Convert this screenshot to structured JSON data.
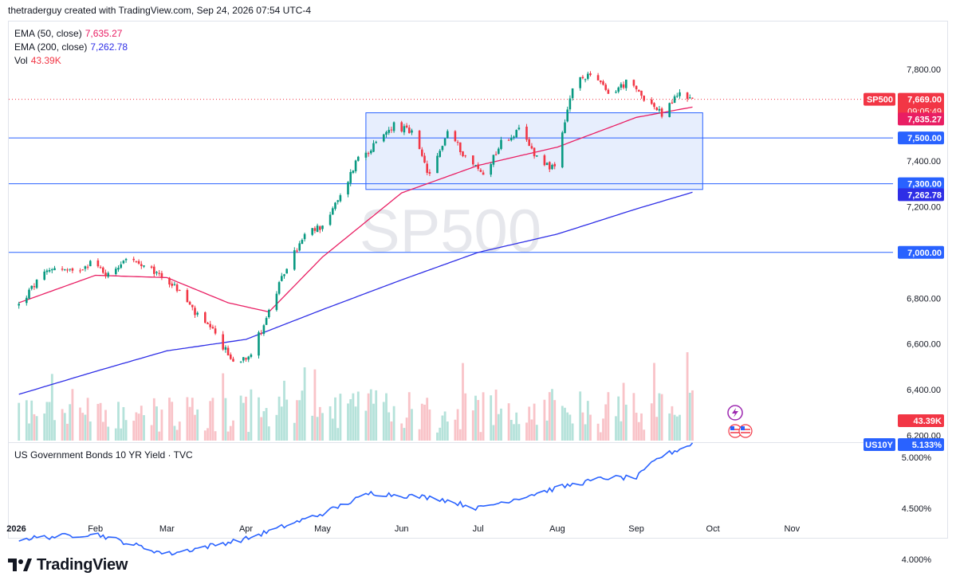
{
  "header": {
    "title": "thetraderguy created with TradingView.com, Sep 24, 2026 07:54 UTC-4"
  },
  "watermark": "SP500",
  "indicators": [
    {
      "name": "EMA (50, close)",
      "value": "7,635.27",
      "color": "#e91e63"
    },
    {
      "name": "EMA (200, close)",
      "value": "7,262.78",
      "color": "#2e2ee6"
    },
    {
      "name": "Vol",
      "value": "43.39K",
      "color": "#f23645"
    }
  ],
  "price_labels": {
    "symbol": "SP500",
    "last": "7,669.00",
    "countdown": "09:05:49",
    "ema50": "7,635.27",
    "ema200": "7,262.78",
    "level_7500": "7,500.00",
    "level_7300": "7,300.00",
    "level_7000": "7,000.00",
    "volume": "43.39K",
    "yield_symbol": "US10Y",
    "yield_value": "5.133%"
  },
  "lower_pane": {
    "title": "US Government Bonds 10 YR Yield · TVC"
  },
  "footer": {
    "brand": "TradingView"
  },
  "colors": {
    "up": "#089981",
    "down": "#f23645",
    "ema50": "#e91e63",
    "ema200": "#2e2ee6",
    "hline": "#2962ff",
    "yield": "#2962ff",
    "box_fill": "#e3ebfd"
  },
  "chart_data": [
    {
      "type": "candlestick",
      "title": "SP500",
      "x_axis": [
        "2026",
        "Feb",
        "Mar",
        "Apr",
        "May",
        "Jun",
        "Jul",
        "Aug",
        "Sep",
        "Oct",
        "Nov"
      ],
      "y_ticks": [
        "7,800.00",
        "7,600.00",
        "7,400.00",
        "7,200.00",
        "7,000.00",
        "6,800.00",
        "6,600.00",
        "6,400.00",
        "6,200.00"
      ],
      "ylim": [
        6180,
        7850
      ],
      "horizontal_lines": [
        7500,
        7300,
        7000
      ],
      "range_box": {
        "from": "2026-05-18",
        "to": "2026-09-27",
        "low": 7275,
        "high": 7610
      },
      "close_path": [
        [
          "2026-01-02",
          6770
        ],
        [
          "2026-01-09",
          6870
        ],
        [
          "2026-01-16",
          6940
        ],
        [
          "2026-01-23",
          6910
        ],
        [
          "2026-01-30",
          6960
        ],
        [
          "2026-02-06",
          6900
        ],
        [
          "2026-02-13",
          6980
        ],
        [
          "2026-02-20",
          6930
        ],
        [
          "2026-02-27",
          6900
        ],
        [
          "2026-03-06",
          6830
        ],
        [
          "2026-03-13",
          6720
        ],
        [
          "2026-03-20",
          6640
        ],
        [
          "2026-03-27",
          6520
        ],
        [
          "2026-04-03",
          6560
        ],
        [
          "2026-04-10",
          6740
        ],
        [
          "2026-04-17",
          6940
        ],
        [
          "2026-04-24",
          7070
        ],
        [
          "2026-05-01",
          7120
        ],
        [
          "2026-05-08",
          7240
        ],
        [
          "2026-05-15",
          7420
        ],
        [
          "2026-05-22",
          7470
        ],
        [
          "2026-05-29",
          7560
        ],
        [
          "2026-06-05",
          7520
        ],
        [
          "2026-06-12",
          7330
        ],
        [
          "2026-06-19",
          7530
        ],
        [
          "2026-06-26",
          7420
        ],
        [
          "2026-07-03",
          7340
        ],
        [
          "2026-07-10",
          7480
        ],
        [
          "2026-07-17",
          7530
        ],
        [
          "2026-07-24",
          7420
        ],
        [
          "2026-07-31",
          7360
        ],
        [
          "2026-08-07",
          7720
        ],
        [
          "2026-08-14",
          7790
        ],
        [
          "2026-08-21",
          7690
        ],
        [
          "2026-08-28",
          7740
        ],
        [
          "2026-09-04",
          7680
        ],
        [
          "2026-09-11",
          7600
        ],
        [
          "2026-09-18",
          7700
        ],
        [
          "2026-09-23",
          7669
        ]
      ],
      "ema50_path": [
        [
          "2026-01-02",
          6780
        ],
        [
          "2026-02-01",
          6900
        ],
        [
          "2026-03-01",
          6890
        ],
        [
          "2026-03-25",
          6780
        ],
        [
          "2026-04-10",
          6740
        ],
        [
          "2026-05-01",
          6980
        ],
        [
          "2026-06-01",
          7260
        ],
        [
          "2026-07-01",
          7380
        ],
        [
          "2026-08-01",
          7460
        ],
        [
          "2026-09-01",
          7590
        ],
        [
          "2026-09-23",
          7635
        ]
      ],
      "ema200_path": [
        [
          "2026-01-02",
          6380
        ],
        [
          "2026-02-01",
          6480
        ],
        [
          "2026-03-01",
          6570
        ],
        [
          "2026-04-01",
          6620
        ],
        [
          "2026-05-01",
          6750
        ],
        [
          "2026-06-01",
          6880
        ],
        [
          "2026-07-01",
          7000
        ],
        [
          "2026-08-01",
          7080
        ],
        [
          "2026-09-01",
          7190
        ],
        [
          "2026-09-23",
          7262.78
        ]
      ]
    },
    {
      "type": "line",
      "title": "US Government Bonds 10 YR Yield · TVC",
      "y_ticks": [
        "5.000%",
        "4.500%",
        "4.000%"
      ],
      "ylim": [
        3.8,
        5.25
      ],
      "series": [
        {
          "name": "US10Y",
          "values": [
            [
              "2026-01-02",
              4.2
            ],
            [
              "2026-02-01",
              4.25
            ],
            [
              "2026-03-01",
              4.05
            ],
            [
              "2026-04-01",
              4.2
            ],
            [
              "2026-05-01",
              4.45
            ],
            [
              "2026-05-20",
              4.65
            ],
            [
              "2026-06-15",
              4.6
            ],
            [
              "2026-07-01",
              4.5
            ],
            [
              "2026-08-01",
              4.7
            ],
            [
              "2026-08-20",
              4.8
            ],
            [
              "2026-09-01",
              4.8
            ],
            [
              "2026-09-10",
              5.0
            ],
            [
              "2026-09-23",
              5.133
            ]
          ]
        }
      ]
    }
  ]
}
